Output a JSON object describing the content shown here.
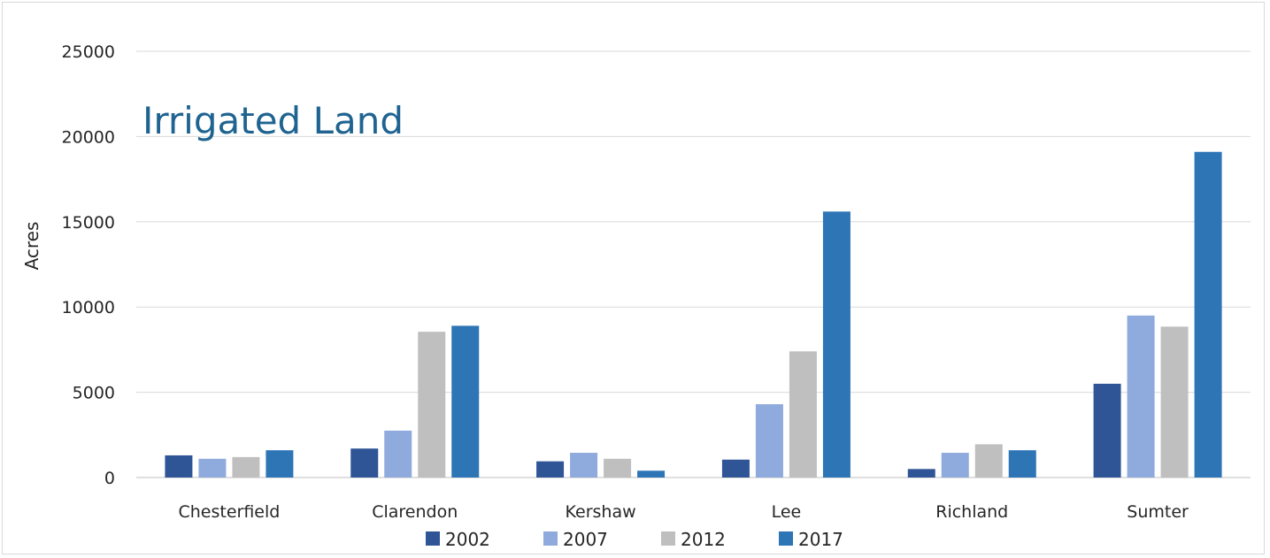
{
  "chart_data": {
    "type": "bar",
    "title": "Irrigated Land",
    "ylabel": "Acres",
    "xlabel": "",
    "ylim": [
      0,
      25000
    ],
    "yticks": [
      0,
      5000,
      10000,
      15000,
      20000,
      25000
    ],
    "grid": true,
    "legend_position": "bottom",
    "categories": [
      "Chesterfield",
      "Clarendon",
      "Kershaw",
      "Lee",
      "Richland",
      "Sumter"
    ],
    "series": [
      {
        "name": "2002",
        "color": "#2f5597",
        "values": [
          1300,
          1700,
          950,
          1050,
          500,
          5500
        ]
      },
      {
        "name": "2007",
        "color": "#8faadc",
        "values": [
          1100,
          2750,
          1450,
          4300,
          1450,
          9500
        ]
      },
      {
        "name": "2012",
        "color": "#bfbfbf",
        "values": [
          1200,
          8550,
          1100,
          7400,
          1950,
          8850
        ]
      },
      {
        "name": "2017",
        "color": "#2e75b6",
        "values": [
          1600,
          8900,
          400,
          15600,
          1600,
          19100
        ]
      }
    ]
  }
}
